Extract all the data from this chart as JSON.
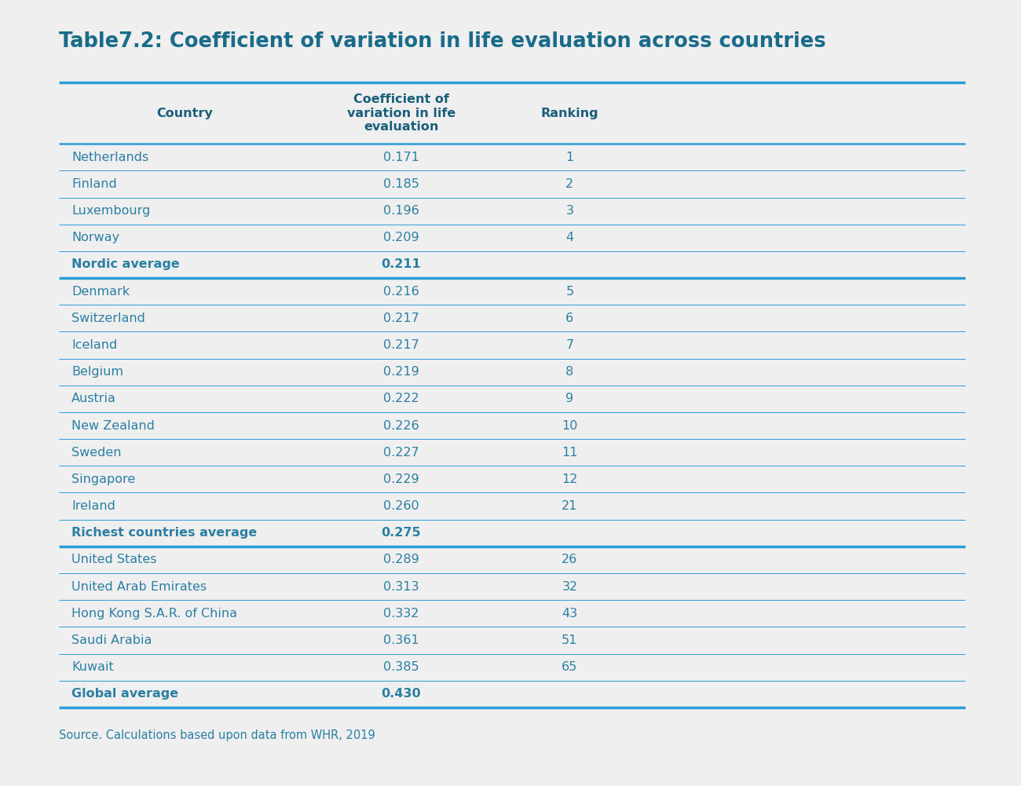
{
  "title": "Table7.2: Coefficient of variation in life evaluation across countries",
  "title_color": "#1a6b8a",
  "background_color": "#efefef",
  "table_bg_color": "#ffffff",
  "header_bg_color": "#d6e8f5",
  "row_bg_even": "#d6e8f5",
  "row_bg_odd": "#ffffff",
  "bold_row_bg": "#d6e8f5",
  "text_color": "#2b7fa3",
  "bold_text_color": "#1a5f7a",
  "header_text_color": "#1a5f7a",
  "divider_color": "#2b9cd8",
  "source_text": "Source. Calculations based upon data from WHR, 2019",
  "col_headers": [
    "Country",
    "Coefficient of\nvariation in life\nevaluation",
    "Ranking"
  ],
  "rows": [
    {
      "country": "Netherlands",
      "coefficient": "0.171",
      "ranking": "1",
      "bold": false
    },
    {
      "country": "Finland",
      "coefficient": "0.185",
      "ranking": "2",
      "bold": false
    },
    {
      "country": "Luxembourg",
      "coefficient": "0.196",
      "ranking": "3",
      "bold": false
    },
    {
      "country": "Norway",
      "coefficient": "0.209",
      "ranking": "4",
      "bold": false
    },
    {
      "country": "Nordic average",
      "coefficient": "0.211",
      "ranking": "",
      "bold": true
    },
    {
      "country": "Denmark",
      "coefficient": "0.216",
      "ranking": "5",
      "bold": false
    },
    {
      "country": "Switzerland",
      "coefficient": "0.217",
      "ranking": "6",
      "bold": false
    },
    {
      "country": "Iceland",
      "coefficient": "0.217",
      "ranking": "7",
      "bold": false
    },
    {
      "country": "Belgium",
      "coefficient": "0.219",
      "ranking": "8",
      "bold": false
    },
    {
      "country": "Austria",
      "coefficient": "0.222",
      "ranking": "9",
      "bold": false
    },
    {
      "country": "New Zealand",
      "coefficient": "0.226",
      "ranking": "10",
      "bold": false
    },
    {
      "country": "Sweden",
      "coefficient": "0.227",
      "ranking": "11",
      "bold": false
    },
    {
      "country": "Singapore",
      "coefficient": "0.229",
      "ranking": "12",
      "bold": false
    },
    {
      "country": "Ireland",
      "coefficient": "0.260",
      "ranking": "21",
      "bold": false
    },
    {
      "country": "Richest countries average",
      "coefficient": "0.275",
      "ranking": "",
      "bold": true
    },
    {
      "country": "United States",
      "coefficient": "0.289",
      "ranking": "26",
      "bold": false
    },
    {
      "country": "United Arab Emirates",
      "coefficient": "0.313",
      "ranking": "32",
      "bold": false
    },
    {
      "country": "Hong Kong S.A.R. of China",
      "coefficient": "0.332",
      "ranking": "43",
      "bold": false
    },
    {
      "country": "Saudi Arabia",
      "coefficient": "0.361",
      "ranking": "51",
      "bold": false
    },
    {
      "country": "Kuwait",
      "coefficient": "0.385",
      "ranking": "65",
      "bold": false
    },
    {
      "country": "Global average",
      "coefficient": "0.430",
      "ranking": "",
      "bold": true
    }
  ]
}
